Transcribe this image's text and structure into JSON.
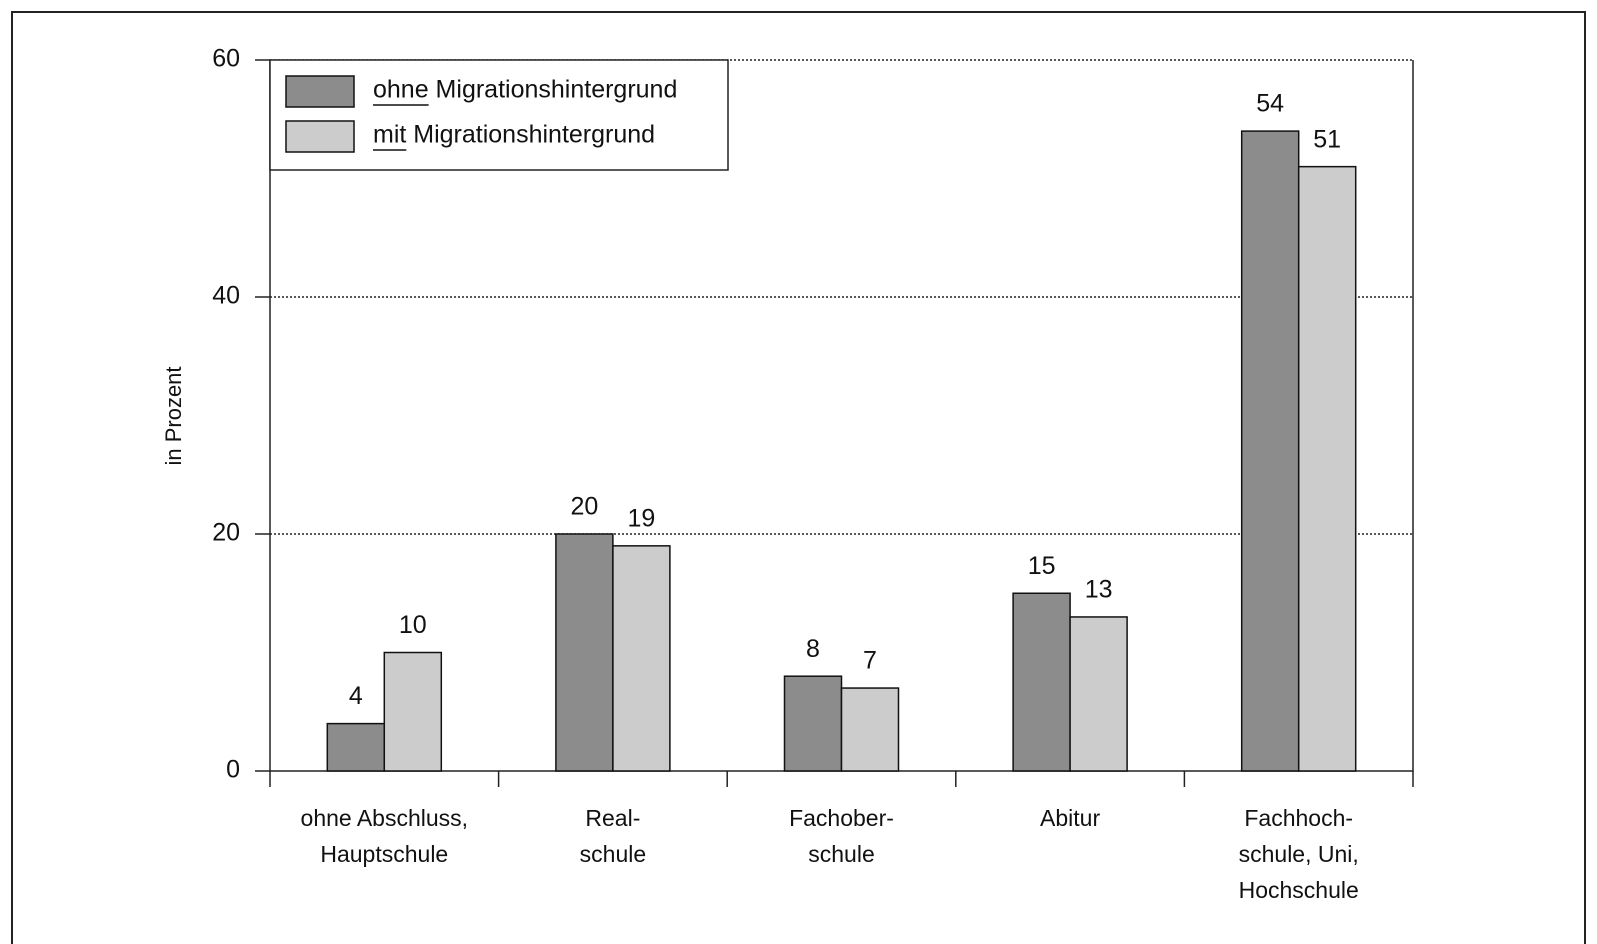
{
  "chart_data": {
    "type": "bar",
    "ylabel": "in Prozent",
    "categories": [
      [
        "ohne Abschluss,",
        "Hauptschule"
      ],
      [
        "Real-",
        "schule"
      ],
      [
        "Fachober-",
        "schule"
      ],
      [
        "Abitur"
      ],
      [
        "Fachhoch-",
        "schule, Uni,",
        "Hochschule"
      ]
    ],
    "series": [
      {
        "name": "ohne Migrationshintergrund",
        "color": "#8c8c8c",
        "values": [
          4,
          20,
          8,
          15,
          54
        ]
      },
      {
        "name": "mit Migrationshintergrund",
        "color": "#cccccc",
        "values": [
          10,
          19,
          7,
          13,
          51
        ]
      }
    ],
    "ylim": [
      0,
      60
    ],
    "yticks": [
      0,
      20,
      40,
      60
    ],
    "grid": true,
    "legend": "upper left"
  }
}
